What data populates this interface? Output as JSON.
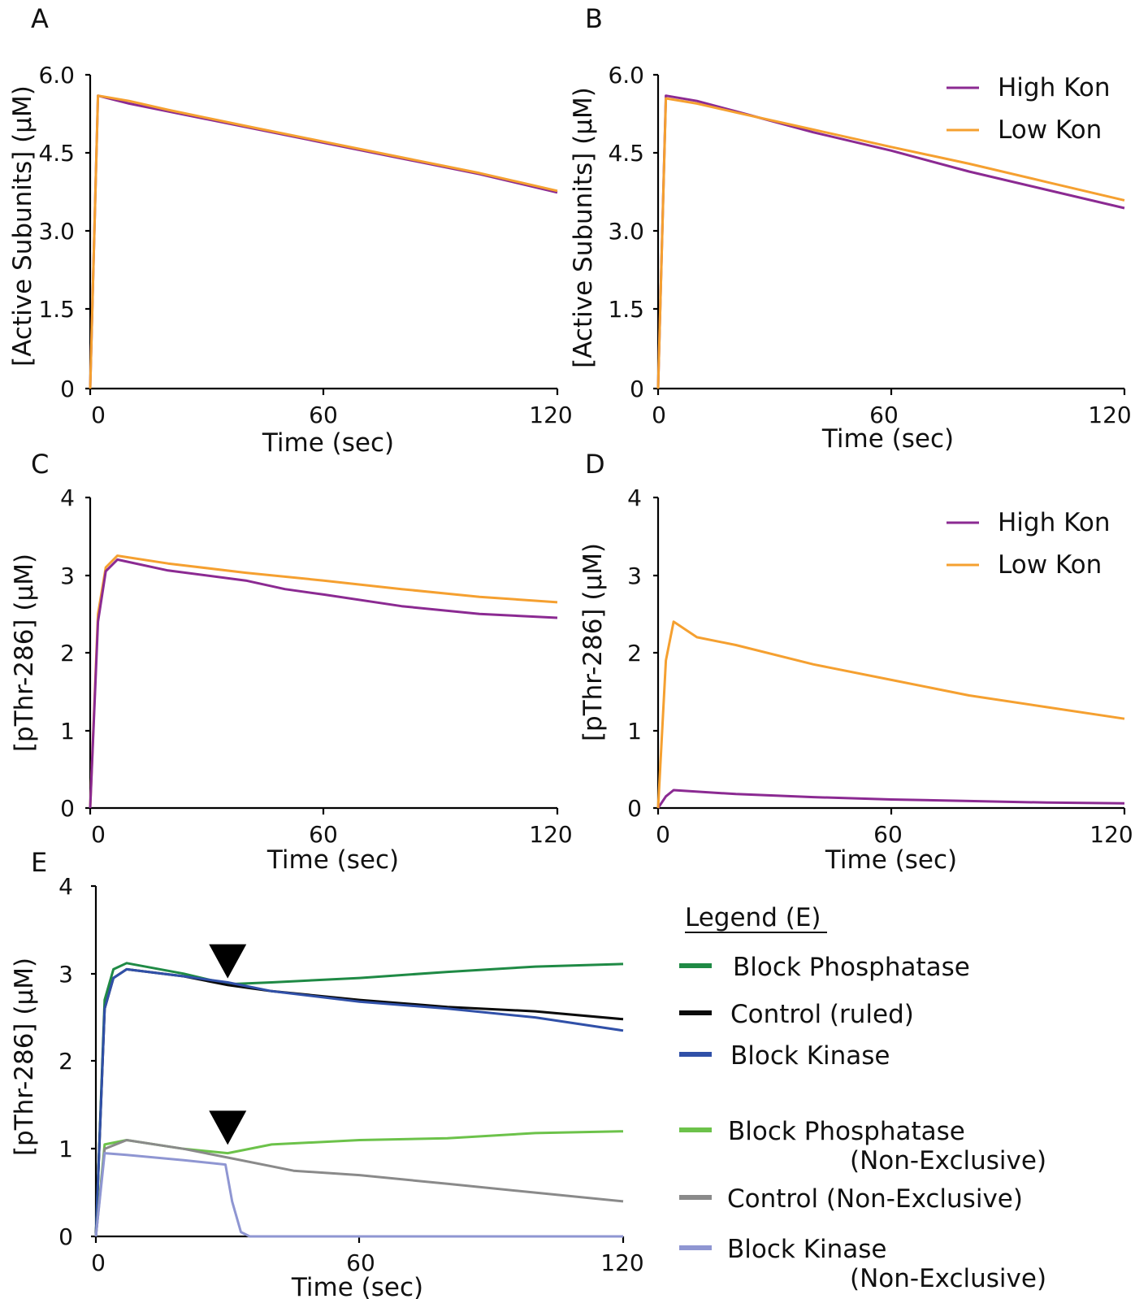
{
  "colors": {
    "high_kon": "#8b2a92",
    "low_kon": "#f5a030",
    "block_phosphatase": "#1f8a45",
    "control": "#0a0a0a",
    "block_kinase": "#3050a8",
    "block_phosphatase_nx": "#6cc24a",
    "control_nx": "#8a8a8a",
    "block_kinase_nx": "#8f96d2"
  },
  "panels": {
    "A": {
      "letter": "A",
      "ylabel": "[Active Subunits] (μM)",
      "xlabel": "Time (sec)",
      "yticks": [
        "0",
        "1.5",
        "3.0",
        "4.5",
        "6.0"
      ],
      "xticks": [
        "0",
        "60",
        "120"
      ]
    },
    "B": {
      "letter": "B",
      "ylabel": "[Active Subunits] (μM)",
      "xlabel": "Time (sec)",
      "yticks": [
        "0",
        "1.5",
        "3.0",
        "4.5",
        "6.0"
      ],
      "xticks": [
        "0",
        "60",
        "120"
      ],
      "legend": [
        "High Kon",
        "Low Kon"
      ]
    },
    "C": {
      "letter": "C",
      "ylabel": "[pThr-286] (μM)",
      "xlabel": "Time (sec)",
      "yticks": [
        "0",
        "1",
        "2",
        "3",
        "4"
      ],
      "xticks": [
        "0",
        "60",
        "120"
      ]
    },
    "D": {
      "letter": "D",
      "ylabel": "[pThr-286] (μM)",
      "xlabel": "Time (sec)",
      "yticks": [
        "0",
        "1",
        "2",
        "3",
        "4"
      ],
      "xticks": [
        "0",
        "60",
        "120"
      ],
      "legend": [
        "High Kon",
        "Low Kon"
      ]
    },
    "E": {
      "letter": "E",
      "ylabel": "[pThr-286] (μM)",
      "xlabel": "Time (sec)",
      "yticks": [
        "0",
        "1",
        "2",
        "3",
        "4"
      ],
      "xticks": [
        "0",
        "60",
        "120"
      ],
      "legend_title": "Legend (E)",
      "legend": [
        {
          "line1": "Block Phosphatase",
          "line2": ""
        },
        {
          "line1": "Control (ruled)",
          "line2": ""
        },
        {
          "line1": "Block Kinase",
          "line2": ""
        },
        {
          "line1": "Block Phosphatase",
          "line2": "(Non-Exclusive)"
        },
        {
          "line1": "Control (Non-Exclusive)",
          "line2": ""
        },
        {
          "line1": "Block Kinase",
          "line2": "(Non-Exclusive)"
        }
      ]
    }
  },
  "chart_data": [
    {
      "panel": "A",
      "type": "line",
      "xlabel": "Time (sec)",
      "ylabel": "[Active Subunits] (μM)",
      "xlim": [
        0,
        120
      ],
      "ylim": [
        0,
        6.0
      ],
      "series": [
        {
          "color": "#8b2a92",
          "x": [
            0,
            2,
            10,
            20,
            40,
            60,
            80,
            100,
            120
          ],
          "y": [
            0,
            5.6,
            5.45,
            5.3,
            5.0,
            4.7,
            4.4,
            4.1,
            3.75
          ]
        },
        {
          "color": "#f5a030",
          "x": [
            0,
            2,
            10,
            20,
            40,
            60,
            80,
            100,
            120
          ],
          "y": [
            0,
            5.6,
            5.5,
            5.33,
            5.02,
            4.72,
            4.42,
            4.12,
            3.78
          ]
        }
      ]
    },
    {
      "panel": "B",
      "type": "line",
      "xlabel": "Time (sec)",
      "ylabel": "[Active Subunits] (μM)",
      "xlim": [
        0,
        120
      ],
      "ylim": [
        0,
        6.0
      ],
      "series": [
        {
          "name": "High Kon",
          "color": "#8b2a92",
          "x": [
            0,
            2,
            10,
            20,
            40,
            60,
            80,
            100,
            120
          ],
          "y": [
            0,
            5.6,
            5.5,
            5.3,
            4.9,
            4.55,
            4.15,
            3.8,
            3.45
          ]
        },
        {
          "name": "Low Kon",
          "color": "#f5a030",
          "x": [
            0,
            2,
            10,
            20,
            40,
            60,
            80,
            100,
            120
          ],
          "y": [
            0,
            5.55,
            5.45,
            5.28,
            4.95,
            4.62,
            4.3,
            3.95,
            3.6
          ]
        }
      ]
    },
    {
      "panel": "C",
      "type": "line",
      "xlabel": "Time (sec)",
      "ylabel": "[pThr-286] (μM)",
      "xlim": [
        0,
        120
      ],
      "ylim": [
        0,
        4
      ],
      "series": [
        {
          "color": "#f5a030",
          "x": [
            0,
            2,
            4,
            7,
            20,
            40,
            60,
            80,
            100,
            120
          ],
          "y": [
            0,
            2.5,
            3.1,
            3.25,
            3.15,
            3.03,
            2.93,
            2.82,
            2.72,
            2.65
          ]
        },
        {
          "color": "#8b2a92",
          "x": [
            0,
            2,
            4,
            7,
            20,
            40,
            50,
            60,
            80,
            100,
            120
          ],
          "y": [
            0,
            2.4,
            3.05,
            3.2,
            3.06,
            2.93,
            2.82,
            2.75,
            2.6,
            2.5,
            2.45
          ]
        }
      ]
    },
    {
      "panel": "D",
      "type": "line",
      "xlabel": "Time (sec)",
      "ylabel": "[pThr-286] (μM)",
      "xlim": [
        0,
        120
      ],
      "ylim": [
        0,
        4
      ],
      "series": [
        {
          "name": "High Kon",
          "color": "#8b2a92",
          "x": [
            0,
            2,
            4,
            20,
            40,
            60,
            80,
            100,
            120
          ],
          "y": [
            0,
            0.15,
            0.23,
            0.18,
            0.14,
            0.11,
            0.09,
            0.07,
            0.06
          ]
        },
        {
          "name": "Low Kon",
          "color": "#f5a030",
          "x": [
            0,
            2,
            4,
            10,
            20,
            40,
            60,
            80,
            100,
            120
          ],
          "y": [
            0,
            1.9,
            2.4,
            2.2,
            2.1,
            1.85,
            1.65,
            1.45,
            1.3,
            1.15
          ]
        }
      ]
    },
    {
      "panel": "E",
      "type": "line",
      "xlabel": "Time (sec)",
      "ylabel": "[pThr-286] (μM)",
      "xlim": [
        0,
        120
      ],
      "ylim": [
        0,
        4
      ],
      "annotations": [
        {
          "type": "arrowhead-down",
          "x": 30,
          "y": 3.15
        },
        {
          "type": "arrowhead-down",
          "x": 30,
          "y": 1.25
        }
      ],
      "series": [
        {
          "name": "Block Phosphatase",
          "color": "#1f8a45",
          "x": [
            0,
            2,
            4,
            7,
            20,
            30,
            40,
            60,
            80,
            100,
            120
          ],
          "y": [
            0,
            2.7,
            3.05,
            3.12,
            3.0,
            2.88,
            2.9,
            2.95,
            3.02,
            3.08,
            3.11
          ]
        },
        {
          "name": "Control (ruled)",
          "color": "#0a0a0a",
          "x": [
            0,
            2,
            4,
            7,
            20,
            30,
            40,
            60,
            80,
            100,
            120
          ],
          "y": [
            0,
            2.6,
            2.95,
            3.05,
            2.97,
            2.87,
            2.8,
            2.7,
            2.62,
            2.57,
            2.48
          ]
        },
        {
          "name": "Block Kinase",
          "color": "#3050a8",
          "x": [
            0,
            2,
            4,
            7,
            20,
            30,
            40,
            60,
            80,
            100,
            120
          ],
          "y": [
            0,
            2.6,
            2.95,
            3.05,
            2.97,
            2.9,
            2.8,
            2.68,
            2.6,
            2.5,
            2.35
          ]
        },
        {
          "name": "Block Phosphatase (Non-Exclusive)",
          "color": "#6cc24a",
          "x": [
            0,
            2,
            7,
            20,
            30,
            40,
            60,
            80,
            100,
            120
          ],
          "y": [
            0,
            1.05,
            1.1,
            1.0,
            0.95,
            1.05,
            1.1,
            1.12,
            1.18,
            1.2
          ]
        },
        {
          "name": "Control (Non-Exclusive)",
          "color": "#8a8a8a",
          "x": [
            0,
            2,
            7,
            20,
            30,
            45,
            60,
            80,
            100,
            120
          ],
          "y": [
            0,
            1.0,
            1.1,
            1.0,
            0.9,
            0.75,
            0.7,
            0.6,
            0.5,
            0.4
          ]
        },
        {
          "name": "Block Kinase (Non-Exclusive)",
          "color": "#8f96d2",
          "x": [
            0,
            2,
            7,
            20,
            29.5,
            31,
            33,
            35,
            60,
            120
          ],
          "y": [
            0,
            0.95,
            0.93,
            0.87,
            0.82,
            0.4,
            0.05,
            0,
            0,
            0
          ]
        }
      ]
    }
  ]
}
